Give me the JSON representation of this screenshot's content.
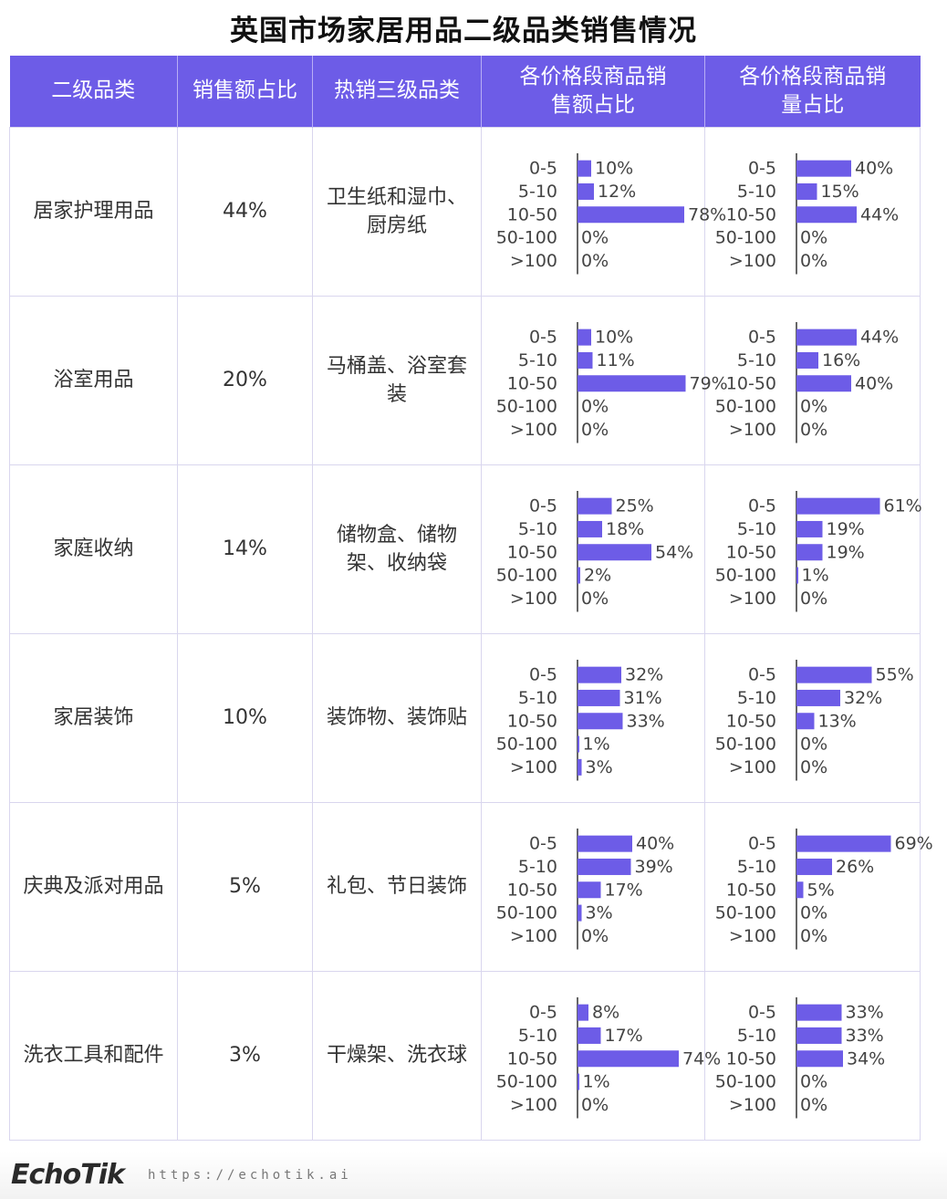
{
  "title": "英国市场家居用品二级品类销售情况",
  "headers": [
    "二级品类",
    "销售额占比",
    "热销三级品类",
    "各价格段商品销售额占比",
    "各价格段商品销量占比"
  ],
  "footer": {
    "logo": "EchoTik",
    "url": "https://echotik.ai"
  },
  "colors": {
    "accent": "#6d5ce7",
    "bar": "#6d5ce7"
  },
  "chart_data": {
    "type": "table",
    "price_bands": [
      "0-5",
      "5-10",
      "10-50",
      "50-100",
      ">100"
    ],
    "bar_max": 100,
    "rows": [
      {
        "category": "居家护理用品",
        "share": "44%",
        "hot": "卫生纸和湿巾、厨房纸",
        "sales": [
          10,
          12,
          78,
          0,
          0
        ],
        "volume": [
          40,
          15,
          44,
          0,
          0
        ]
      },
      {
        "category": "浴室用品",
        "share": "20%",
        "hot": "马桶盖、浴室套装",
        "sales": [
          10,
          11,
          79,
          0,
          0
        ],
        "volume": [
          44,
          16,
          40,
          0,
          0
        ]
      },
      {
        "category": "家庭收纳",
        "share": "14%",
        "hot": "储物盒、储物架、收纳袋",
        "sales": [
          25,
          18,
          54,
          2,
          0
        ],
        "volume": [
          61,
          19,
          19,
          1,
          0
        ]
      },
      {
        "category": "家居装饰",
        "share": "10%",
        "hot": "装饰物、装饰贴",
        "sales": [
          32,
          31,
          33,
          1,
          3
        ],
        "volume": [
          55,
          32,
          13,
          0,
          0
        ]
      },
      {
        "category": "庆典及派对用品",
        "share": "5%",
        "hot": "礼包、节日装饰",
        "sales": [
          40,
          39,
          17,
          3,
          0
        ],
        "volume": [
          69,
          26,
          5,
          0,
          0
        ]
      },
      {
        "category": "洗衣工具和配件",
        "share": "3%",
        "hot": "干燥架、洗衣球",
        "sales": [
          8,
          17,
          74,
          1,
          0
        ],
        "volume": [
          33,
          33,
          34,
          0,
          0
        ]
      }
    ]
  }
}
